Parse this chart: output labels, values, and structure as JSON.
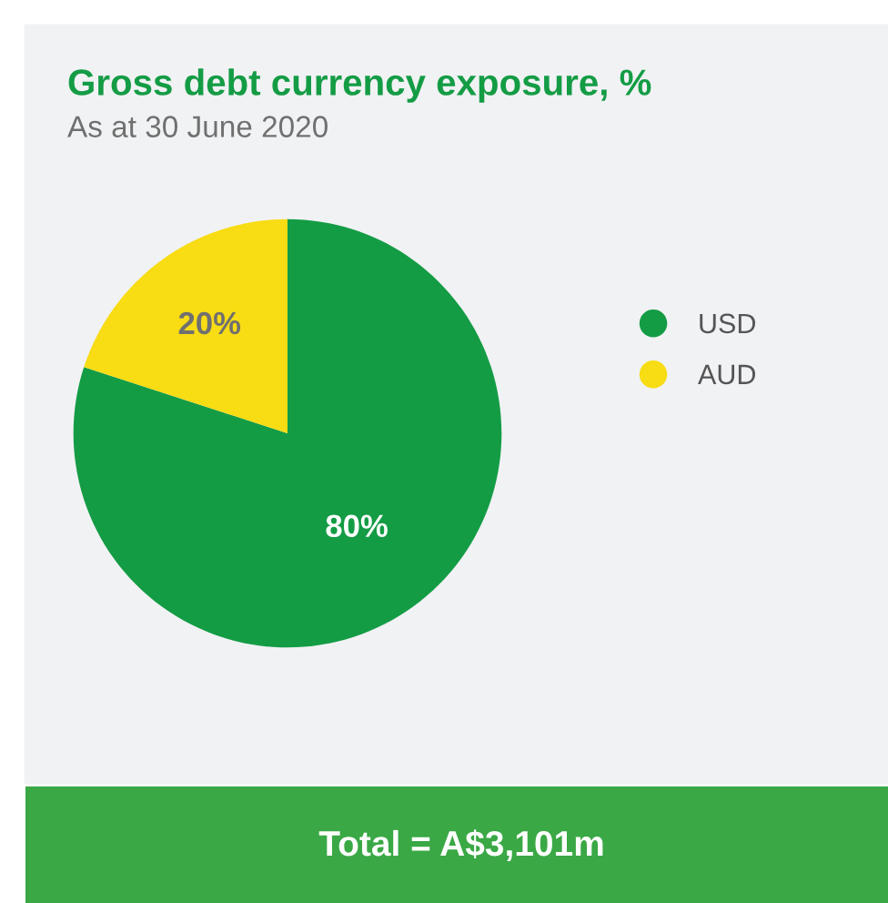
{
  "chart_data": {
    "type": "pie",
    "title": "Gross debt currency exposure, %",
    "subtitle": "As at 30 June 2020",
    "categories": [
      "USD",
      "AUD"
    ],
    "values": [
      80,
      20
    ],
    "colors": [
      "#149c45",
      "#f8dc14"
    ],
    "value_labels": [
      "80%",
      "20%"
    ],
    "legend": "right",
    "annotations": [
      "Total = A$3,101m"
    ]
  }
}
